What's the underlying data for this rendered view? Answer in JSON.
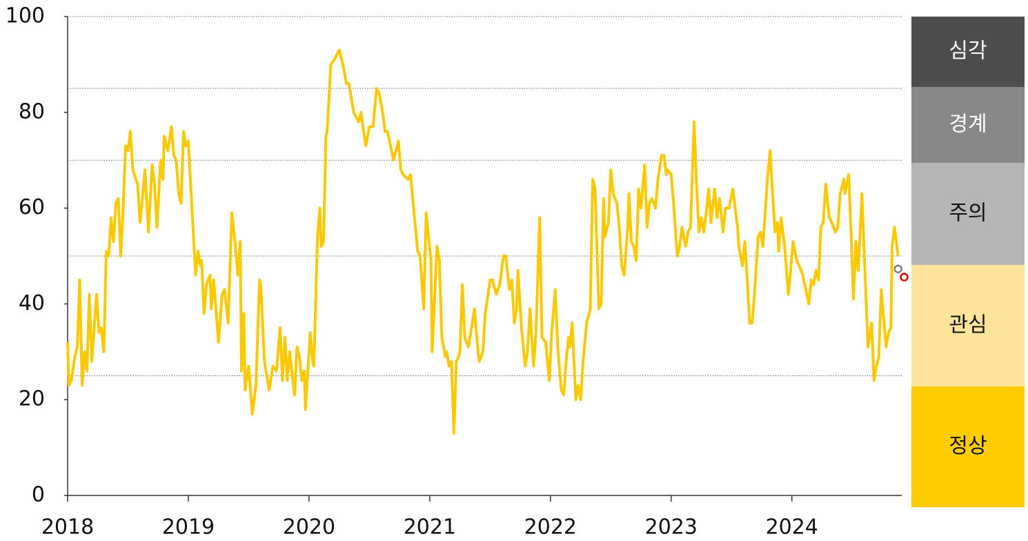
{
  "chart_data": {
    "type": "line",
    "x": [
      2018,
      2018.01,
      2018.03,
      2018.06,
      2018.08,
      2018.1,
      2018.12,
      2018.14,
      2018.16,
      2018.18,
      2018.2,
      2018.24,
      2018.26,
      2018.28,
      2018.3,
      2018.32,
      2018.34,
      2018.36,
      2018.38,
      2018.4,
      2018.42,
      2018.44,
      2018.46,
      2018.48,
      2018.5,
      2018.52,
      2018.54,
      2018.58,
      2018.6,
      2018.62,
      2018.64,
      2018.67,
      2018.7,
      2018.72,
      2018.74,
      2018.77,
      2018.79,
      2018.8,
      2018.83,
      2018.86,
      2018.88,
      2018.9,
      2018.92,
      2018.94,
      2018.96,
      2018.98,
      2019,
      2019.03,
      2019.06,
      2019.08,
      2019.1,
      2019.11,
      2019.13,
      2019.15,
      2019.18,
      2019.19,
      2019.21,
      2019.25,
      2019.28,
      2019.3,
      2019.33,
      2019.36,
      2019.39,
      2019.41,
      2019.43,
      2019.44,
      2019.46,
      2019.47,
      2019.5,
      2019.53,
      2019.56,
      2019.59,
      2019.6,
      2019.63,
      2019.67,
      2019.7,
      2019.73,
      2019.76,
      2019.78,
      2019.8,
      2019.82,
      2019.84,
      2019.88,
      2019.9,
      2019.92,
      2019.94,
      2019.96,
      2019.97,
      2020.01,
      2020.03,
      2020.04,
      2020.07,
      2020.09,
      2020.1,
      2020.12,
      2020.14,
      2020.15,
      2020.18,
      2020.21,
      2020.25,
      2020.28,
      2020.31,
      2020.33,
      2020.37,
      2020.41,
      2020.43,
      2020.47,
      2020.5,
      2020.53,
      2020.56,
      2020.58,
      2020.61,
      2020.63,
      2020.65,
      2020.7,
      2020.74,
      2020.76,
      2020.78,
      2020.82,
      2020.84,
      2020.9,
      2020.92,
      2020.95,
      2020.97,
      2021.01,
      2021.02,
      2021.06,
      2021.08,
      2021.1,
      2021.13,
      2021.14,
      2021.16,
      2021.18,
      2021.2,
      2021.22,
      2021.24,
      2021.25,
      2021.27,
      2021.29,
      2021.32,
      2021.34,
      2021.37,
      2021.4,
      2021.41,
      2021.44,
      2021.46,
      2021.5,
      2021.52,
      2021.55,
      2021.58,
      2021.61,
      2021.63,
      2021.66,
      2021.68,
      2021.7,
      2021.72,
      2021.73,
      2021.76,
      2021.79,
      2021.81,
      2021.83,
      2021.86,
      2021.88,
      2021.91,
      2021.93,
      2021.96,
      2021.99,
      2022.01,
      2022.04,
      2022.06,
      2022.09,
      2022.11,
      2022.13,
      2022.15,
      2022.16,
      2022.18,
      2022.21,
      2022.23,
      2022.25,
      2022.27,
      2022.3,
      2022.33,
      2022.35,
      2022.37,
      2022.4,
      2022.42,
      2022.44,
      2022.45,
      2022.48,
      2022.5,
      2022.52,
      2022.55,
      2022.57,
      2022.59,
      2022.61,
      2022.64,
      2022.65,
      2022.67,
      2022.69,
      2022.71,
      2022.73,
      2022.75,
      2022.78,
      2022.8,
      2022.82,
      2022.84,
      2022.87,
      2022.89,
      2022.92,
      2022.94,
      2022.96,
      2022.97,
      2023,
      2023.02,
      2023.05,
      2023.07,
      2023.09,
      2023.12,
      2023.14,
      2023.16,
      2023.19,
      2023.21,
      2023.23,
      2023.25,
      2023.27,
      2023.29,
      2023.31,
      2023.33,
      2023.36,
      2023.38,
      2023.4,
      2023.43,
      2023.45,
      2023.48,
      2023.51,
      2023.52,
      2023.55,
      2023.56,
      2023.59,
      2023.61,
      2023.63,
      2023.65,
      2023.67,
      2023.69,
      2023.72,
      2023.74,
      2023.76,
      2023.8,
      2023.82,
      2023.84,
      2023.86,
      2023.88,
      2023.89,
      2023.91,
      2023.94,
      2023.97,
      2023.99,
      2024.01,
      2024.04,
      2024.06,
      2024.09,
      2024.14,
      2024.16,
      2024.18,
      2024.2,
      2024.22,
      2024.24,
      2024.26,
      2024.28,
      2024.31,
      2024.33,
      2024.36,
      2024.38,
      2024.4,
      2024.43,
      2024.44,
      2024.47,
      2024.49,
      2024.51,
      2024.53,
      2024.55,
      2024.58,
      2024.6,
      2024.63,
      2024.66,
      2024.68,
      2024.7,
      2024.72,
      2024.74,
      2024.78,
      2024.8,
      2024.82,
      2024.83,
      2024.85,
      2024.88
    ],
    "values": [
      32,
      23,
      24,
      29,
      31,
      45,
      23,
      30,
      26,
      42,
      28,
      42,
      34,
      35,
      30,
      51,
      50,
      58,
      53,
      61,
      62,
      50,
      60,
      73,
      72,
      76,
      68,
      65,
      57,
      62,
      68,
      55,
      69,
      65,
      56,
      70,
      66,
      75,
      72,
      77,
      71,
      70,
      63,
      61,
      76,
      73,
      74,
      60,
      46,
      51,
      48,
      49,
      38,
      44,
      46,
      39,
      45,
      32,
      42,
      43,
      36,
      59,
      52,
      46,
      53,
      26,
      38,
      22,
      27,
      17,
      23,
      45,
      44,
      28,
      22,
      27,
      26,
      35,
      24,
      33,
      24,
      30,
      21,
      31,
      29,
      24,
      26,
      18,
      34,
      28,
      27,
      54,
      60,
      52,
      53,
      75,
      76,
      90,
      91,
      93,
      90,
      86,
      86,
      80,
      78,
      80,
      73,
      77,
      77,
      85,
      84,
      80,
      76,
      76,
      70,
      74,
      68,
      67,
      66,
      67,
      51,
      50,
      39,
      59,
      49,
      30,
      52,
      49,
      33,
      29,
      30,
      27,
      28,
      13,
      28,
      29,
      30,
      44,
      33,
      31,
      34,
      39,
      30,
      28,
      30,
      38,
      45,
      45,
      42,
      44,
      50,
      50,
      43,
      45,
      36,
      39,
      47,
      35,
      27,
      30,
      39,
      27,
      34,
      58,
      33,
      32,
      24,
      34,
      43,
      31,
      22,
      21,
      28,
      33,
      31,
      36,
      20,
      23,
      20,
      28,
      36,
      39,
      66,
      64,
      39,
      40,
      62,
      54,
      57,
      68,
      63,
      61,
      56,
      48,
      46,
      56,
      63,
      53,
      52,
      49,
      64,
      60,
      69,
      56,
      61,
      62,
      60,
      66,
      71,
      71,
      67,
      68,
      67,
      61,
      50,
      52,
      56,
      52,
      55,
      56,
      78,
      65,
      55,
      58,
      55,
      59,
      64,
      57,
      64,
      58,
      62,
      55,
      60,
      60,
      64,
      62,
      56,
      52,
      48,
      53,
      45,
      36,
      36,
      42,
      54,
      55,
      52,
      67,
      72,
      63,
      55,
      57,
      51,
      58,
      52,
      42,
      47,
      53,
      49,
      48,
      46,
      40,
      45,
      44,
      47,
      45,
      56,
      57,
      65,
      58,
      57,
      55,
      56,
      63,
      66,
      63,
      67,
      55,
      41,
      53,
      47,
      63,
      50,
      31,
      36,
      24,
      27,
      29,
      43,
      31,
      34,
      35,
      52,
      56,
      50
    ],
    "color": "#fcc800",
    "markers": [
      {
        "x": 2024.88,
        "value": 47.3,
        "color": "#808080"
      },
      {
        "x": 2024.93,
        "value": 45.6,
        "color": "#e00000"
      }
    ],
    "xlim": [
      2018,
      2024.91
    ],
    "xticks": [
      2018,
      2019,
      2020,
      2021,
      2022,
      2023,
      2024
    ],
    "ylim": [
      0,
      100
    ],
    "yticks": [
      0,
      20,
      40,
      60,
      80,
      100
    ],
    "thresholds": [
      25,
      50,
      70,
      85,
      100
    ],
    "levels": [
      {
        "label": "심각",
        "color": "#4d4d4d"
      },
      {
        "label": "경계",
        "color": "#888888"
      },
      {
        "label": "주의",
        "color": "#b5b5b5"
      },
      {
        "label": "관심",
        "color": "#ffe59c"
      },
      {
        "label": "정상",
        "color": "#ffcc00"
      }
    ]
  }
}
